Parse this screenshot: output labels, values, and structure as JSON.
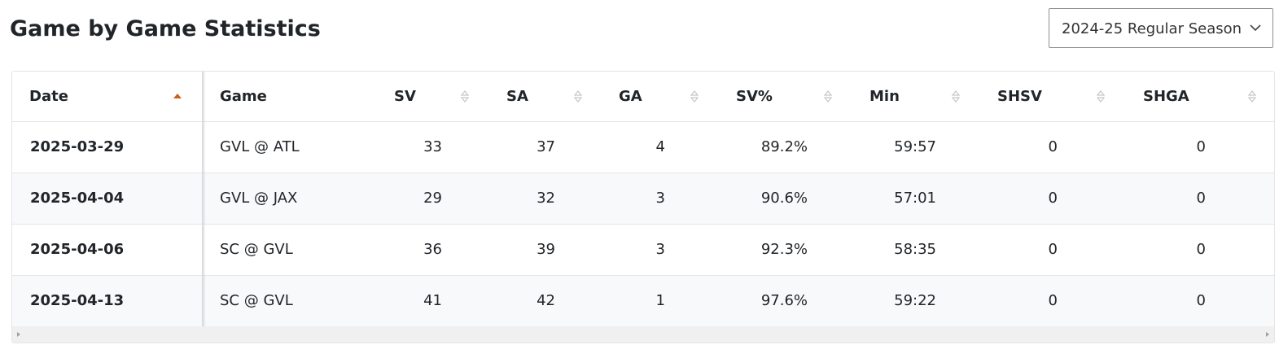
{
  "header": {
    "title": "Game by Game Statistics"
  },
  "season_select": {
    "label": "2024-25 Regular Season"
  },
  "table": {
    "columns": [
      "Date",
      "Game",
      "SV",
      "SA",
      "GA",
      "SV%",
      "Min",
      "SHSV",
      "SHGA"
    ],
    "rows": [
      [
        "2025-03-29",
        "GVL @ ATL",
        33,
        37,
        4,
        "89.2%",
        "59:57",
        0,
        0
      ],
      [
        "2025-04-04",
        "GVL @ JAX",
        29,
        32,
        3,
        "90.6%",
        "57:01",
        0,
        0
      ],
      [
        "2025-04-06",
        "SC @ GVL",
        36,
        39,
        3,
        "92.3%",
        "58:35",
        0,
        0
      ],
      [
        "2025-04-13",
        "SC @ GVL",
        41,
        42,
        1,
        "97.6%",
        "59:22",
        0,
        0
      ]
    ]
  }
}
